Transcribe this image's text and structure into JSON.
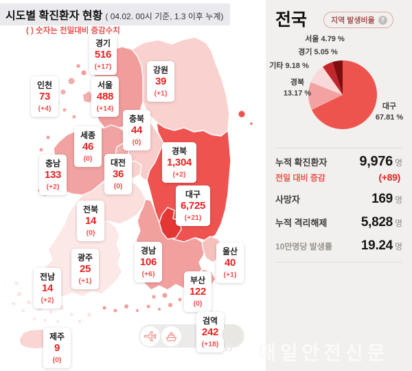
{
  "header": {
    "title": "시도별 확진환자 현황",
    "title_suffix": "( 04.02. 00시 기준, 1.3 이후 누계)",
    "legend_note": "( ) 숫자는 전일대비 증감수치"
  },
  "map": {
    "regions": [
      {
        "key": "gyeonggi",
        "name": "경기",
        "value": "516",
        "delta": "(+17)",
        "fill": "#f19d9c"
      },
      {
        "key": "gangwon",
        "name": "강원",
        "value": "39",
        "delta": "(+1)",
        "fill": "#f9d2d0"
      },
      {
        "key": "incheon",
        "name": "인천",
        "value": "73",
        "delta": "(+4)",
        "fill": "#f3aeac"
      },
      {
        "key": "seoul",
        "name": "서울",
        "value": "488",
        "delta": "(+14)",
        "fill": "#ee8f8d"
      },
      {
        "key": "chungbuk",
        "name": "충북",
        "value": "44",
        "delta": "(0)",
        "fill": "#f9cdcb"
      },
      {
        "key": "sejong",
        "name": "세종",
        "value": "46",
        "delta": "(0)",
        "fill": "#f3b1ae"
      },
      {
        "key": "chungnam",
        "name": "충남",
        "value": "133",
        "delta": "(+2)",
        "fill": "#f1a3a1"
      },
      {
        "key": "daejeon",
        "name": "대전",
        "value": "36",
        "delta": "(0)",
        "fill": "#f9d2d0"
      },
      {
        "key": "gyeongbuk",
        "name": "경북",
        "value": "1,304",
        "delta": "(+2)",
        "fill": "#ee5350"
      },
      {
        "key": "daegu",
        "name": "대구",
        "value": "6,725",
        "delta": "(+21)",
        "fill": "#e23734"
      },
      {
        "key": "jeonbuk",
        "name": "전북",
        "value": "14",
        "delta": "(0)",
        "fill": "#fbdfdd"
      },
      {
        "key": "gyeongnam",
        "name": "경남",
        "value": "106",
        "delta": "(+6)",
        "fill": "#f1a09e"
      },
      {
        "key": "ulsan",
        "name": "울산",
        "value": "40",
        "delta": "(+1)",
        "fill": "#f6c0bd"
      },
      {
        "key": "gwangju",
        "name": "광주",
        "value": "25",
        "delta": "(+1)",
        "fill": "#f8cac8"
      },
      {
        "key": "busan",
        "name": "부산",
        "value": "122",
        "delta": "(0)",
        "fill": "#f1a3a1"
      },
      {
        "key": "jeonnam",
        "name": "전남",
        "value": "14",
        "delta": "(+2)",
        "fill": "#fce8e6"
      },
      {
        "key": "jeju",
        "name": "제주",
        "value": "9",
        "delta": "(0)",
        "fill": "#f9d5d3"
      },
      {
        "key": "quarantine",
        "name": "검역",
        "value": "242",
        "delta": "(+18)",
        "fill": "#edebe9"
      }
    ]
  },
  "panel": {
    "title": "전국",
    "badge": "지역 발생비율",
    "badge_help": "?",
    "stats": [
      {
        "label": "누적 확진환자",
        "value": "9,976",
        "unit": "명"
      },
      {
        "label": "전일 대비 증감",
        "value": "(+89)",
        "unit": ""
      },
      {
        "label": "사망자",
        "value": "169",
        "unit": "명"
      },
      {
        "label": "누적 격리해제",
        "value": "5,828",
        "unit": "명"
      },
      {
        "label": "10만명당 발생률",
        "value": "19.24",
        "unit": "명"
      }
    ]
  },
  "chart_data": [
    {
      "type": "pie",
      "title": "지역 발생비율",
      "unit": "%",
      "direction": "clockwise",
      "start_angle_deg": 0,
      "slices": [
        {
          "name": "대구",
          "pct": 67.81,
          "color": "#ee544e"
        },
        {
          "name": "경북",
          "pct": 13.17,
          "color": "#f2a3a1"
        },
        {
          "name": "기타",
          "pct": 9.18,
          "color": "#f9d9da"
        },
        {
          "name": "경기",
          "pct": 5.05,
          "color": "#c2272b"
        },
        {
          "name": "서울",
          "pct": 4.79,
          "color": "#7c0e10"
        }
      ]
    },
    {
      "type": "table",
      "title": "시도별 확진환자 현황 (04.02. 00시 기준, 1.3 이후 누계)",
      "columns": [
        "지역",
        "누적 확진환자",
        "전일대비 증감"
      ],
      "rows": [
        [
          "경기",
          516,
          17
        ],
        [
          "강원",
          39,
          1
        ],
        [
          "인천",
          73,
          4
        ],
        [
          "서울",
          488,
          14
        ],
        [
          "충북",
          44,
          0
        ],
        [
          "세종",
          46,
          0
        ],
        [
          "충남",
          133,
          2
        ],
        [
          "대전",
          36,
          0
        ],
        [
          "경북",
          1304,
          2
        ],
        [
          "대구",
          6725,
          21
        ],
        [
          "전북",
          14,
          0
        ],
        [
          "경남",
          106,
          6
        ],
        [
          "울산",
          40,
          1
        ],
        [
          "광주",
          25,
          1
        ],
        [
          "부산",
          122,
          0
        ],
        [
          "전남",
          14,
          2
        ],
        [
          "제주",
          9,
          0
        ],
        [
          "검역",
          242,
          18
        ]
      ]
    }
  ],
  "watermark": {
    "text": "매일안전신문",
    "logo_letter": "D"
  }
}
